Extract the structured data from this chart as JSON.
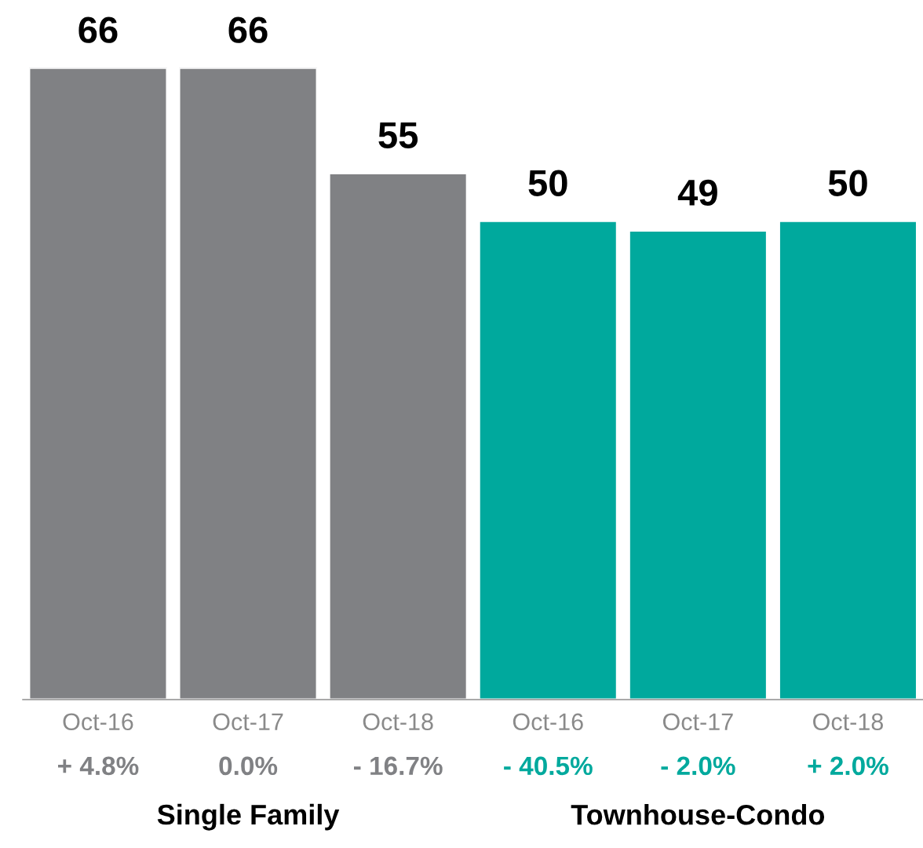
{
  "chart_data": {
    "type": "bar",
    "categories": [
      "Oct-16",
      "Oct-17",
      "Oct-18",
      "Oct-16",
      "Oct-17",
      "Oct-18"
    ],
    "values": [
      66,
      66,
      55,
      50,
      49,
      50
    ],
    "colors": [
      "#808184",
      "#808184",
      "#808184",
      "#00a99d",
      "#00a99d",
      "#00a99d"
    ],
    "data_labels": true,
    "annotations": [
      "+ 4.8%",
      "0.0%",
      "- 16.7%",
      "- 40.5%",
      "- 2.0%",
      "+ 2.0%",
      "Single Family",
      "Townhouse-Condo"
    ]
  }
}
